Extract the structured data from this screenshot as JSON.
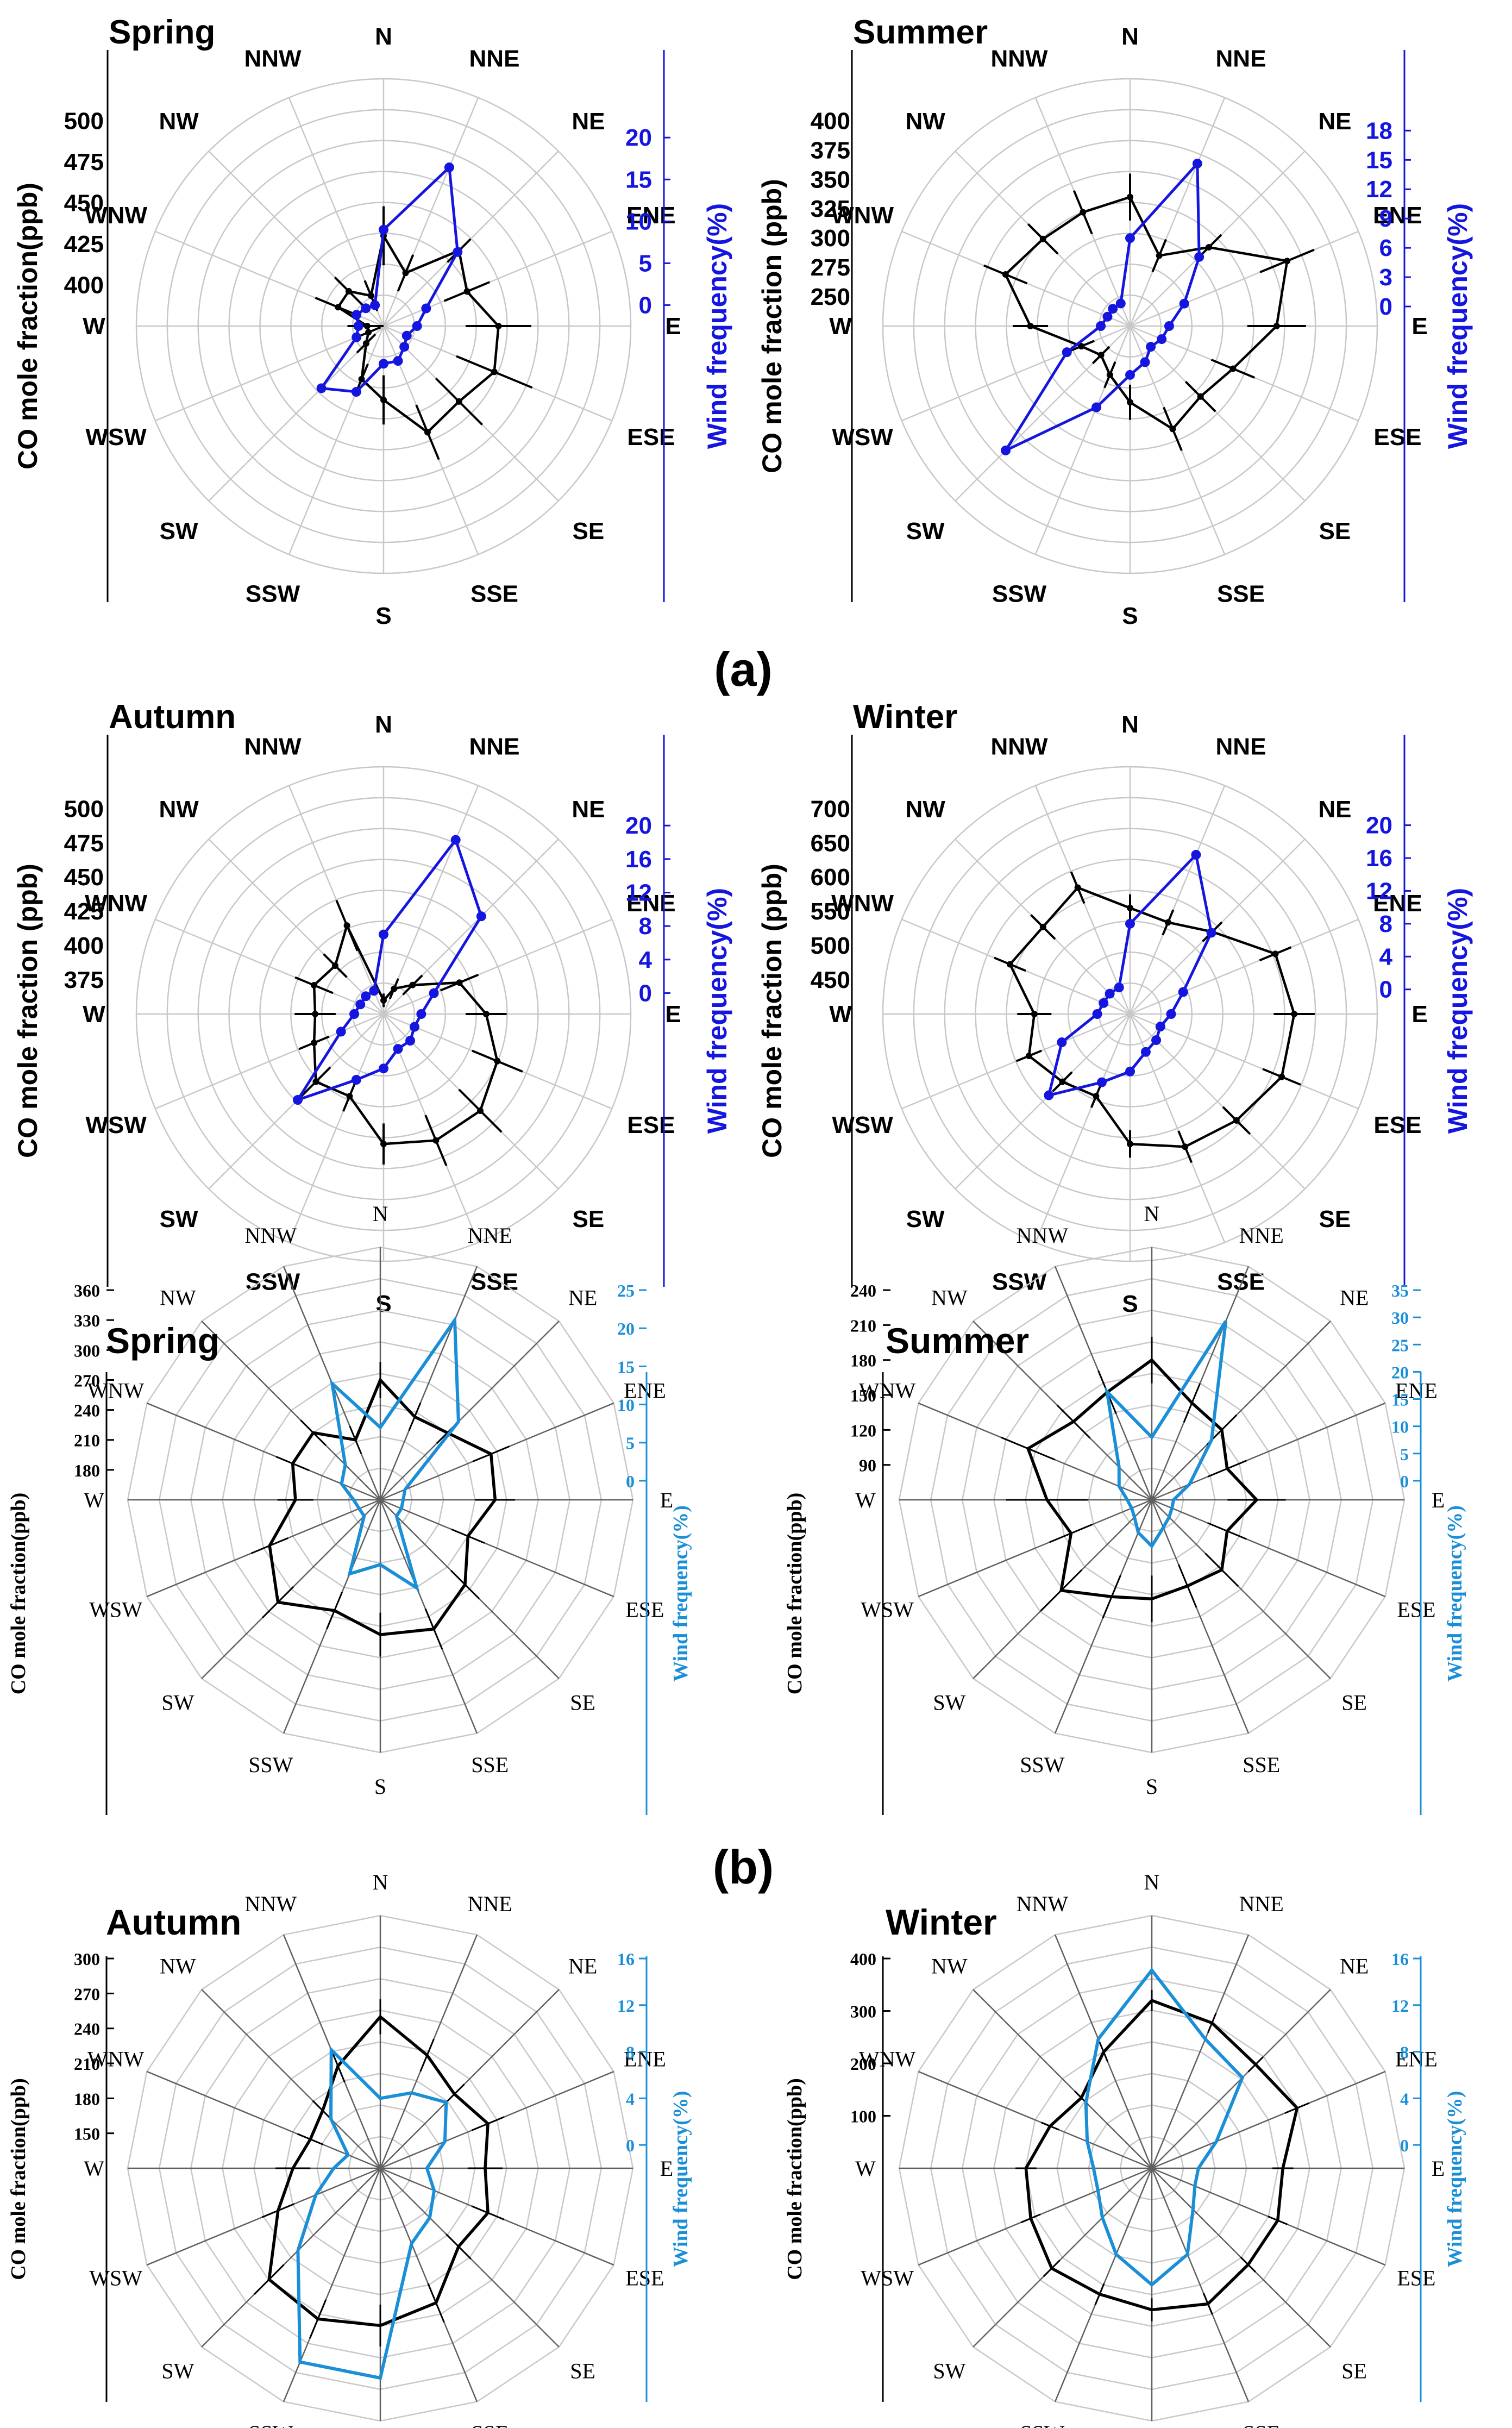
{
  "figure": {
    "group_a_label": "(a)",
    "group_b_label": "(b)",
    "colors": {
      "co": "#000000",
      "wind_a": "#1515e0",
      "wind_b": "#1a8fd8",
      "grid": "#c8c8c8",
      "spoke_b": "#606060"
    }
  },
  "directions": [
    "N",
    "NNE",
    "NE",
    "ENE",
    "E",
    "ESE",
    "SE",
    "SSE",
    "S",
    "SSW",
    "SW",
    "WSW",
    "W",
    "WNW",
    "NW",
    "NNW"
  ],
  "chart_data": [
    {
      "id": "a-spring",
      "group": "a",
      "type": "radar",
      "title": "Spring",
      "left_axis_label": "CO mole fraction(ppb)",
      "right_axis_label": "Wind frequency(%)",
      "co_ticks": [
        400,
        425,
        450,
        475,
        500
      ],
      "co_range": [
        375,
        500
      ],
      "wf_ticks": [
        0,
        5,
        10,
        15,
        20
      ],
      "wf_range": [
        -2.5,
        22
      ],
      "categories": [
        "N",
        "NNE",
        "NE",
        "ENE",
        "E",
        "ESE",
        "SE",
        "SSE",
        "S",
        "SSW",
        "SW",
        "WSW",
        "W",
        "WNW",
        "NW",
        "NNW"
      ],
      "series": [
        {
          "name": "CO mole fraction",
          "values": [
            430,
            410,
            440,
            430,
            445,
            448,
            440,
            445,
            420,
            410,
            390,
            385,
            385,
            405,
            405,
            395
          ],
          "errors": [
            18,
            12,
            10,
            15,
            20,
            25,
            20,
            18,
            15,
            10,
            8,
            8,
            12,
            15,
            12,
            10
          ]
        },
        {
          "name": "Wind frequency",
          "values": [
            9,
            18,
            10,
            3,
            1.5,
            0.5,
            1,
            2,
            2,
            6,
            8,
            1,
            0.5,
            1,
            0.5,
            0.2
          ]
        }
      ]
    },
    {
      "id": "a-summer",
      "group": "a",
      "type": "radar",
      "title": "Summer",
      "left_axis_label": "CO mole fraction (ppb)",
      "right_axis_label": "Wind frequency(%)",
      "co_ticks": [
        250,
        275,
        300,
        325,
        350,
        375,
        400
      ],
      "co_range": [
        225,
        400
      ],
      "wf_ticks": [
        0,
        3,
        6,
        9,
        12,
        15,
        18
      ],
      "wf_range": [
        -2,
        19
      ],
      "categories": [
        "N",
        "NNE",
        "NE",
        "ENE",
        "E",
        "ESE",
        "SE",
        "SSE",
        "S",
        "SSW",
        "SW",
        "WSW",
        "W",
        "WNW",
        "NW",
        "NNW"
      ],
      "series": [
        {
          "name": "CO mole fraction",
          "values": [
            335,
            290,
            320,
            370,
            350,
            320,
            310,
            320,
            290,
            270,
            260,
            270,
            310,
            340,
            330,
            330
          ],
          "errors": [
            20,
            15,
            15,
            25,
            25,
            20,
            18,
            20,
            15,
            12,
            10,
            12,
            15,
            20,
            18,
            20
          ]
        },
        {
          "name": "Wind frequency",
          "values": [
            7,
            16,
            8,
            4,
            2,
            1.5,
            1,
            2,
            3,
            7,
            16,
            5,
            1,
            0.5,
            0.5,
            0.5
          ]
        }
      ]
    },
    {
      "id": "a-autumn",
      "group": "a",
      "type": "radar",
      "title": "Autumn",
      "left_axis_label": "CO mole fraction (ppb)",
      "right_axis_label": "Wind frequency(%)",
      "co_ticks": [
        375,
        400,
        425,
        450,
        475,
        500
      ],
      "co_range": [
        350,
        500
      ],
      "wf_ticks": [
        0,
        4,
        8,
        12,
        16,
        20
      ],
      "wf_range": [
        -2.5,
        22
      ],
      "categories": [
        "N",
        "NNE",
        "NE",
        "ENE",
        "E",
        "ESE",
        "SE",
        "SSE",
        "S",
        "SSW",
        "SW",
        "WSW",
        "W",
        "WNW",
        "NW",
        "NNW"
      ],
      "series": [
        {
          "name": "CO mole fraction",
          "values": [
            360,
            370,
            380,
            410,
            425,
            440,
            450,
            450,
            445,
            415,
            420,
            405,
            400,
            405,
            400,
            420
          ],
          "errors": [
            5,
            8,
            10,
            15,
            15,
            20,
            22,
            20,
            15,
            12,
            15,
            12,
            15,
            15,
            12,
            20
          ]
        },
        {
          "name": "Wind frequency",
          "values": [
            7,
            20,
            14,
            4,
            2,
            1.5,
            2,
            2,
            4,
            6,
            12,
            3,
            1,
            0.5,
            0.5,
            0.5
          ]
        }
      ]
    },
    {
      "id": "a-winter",
      "group": "a",
      "type": "radar",
      "title": "Winter",
      "left_axis_label": "CO mole fraction (ppb)",
      "right_axis_label": "Wind frequency(%)",
      "co_ticks": [
        450,
        500,
        550,
        600,
        650,
        700
      ],
      "co_range": [
        400,
        700
      ],
      "wf_ticks": [
        0,
        4,
        8,
        12,
        16,
        20
      ],
      "wf_range": [
        -3,
        22
      ],
      "categories": [
        "N",
        "NNE",
        "NE",
        "ENE",
        "E",
        "ESE",
        "SE",
        "SSE",
        "S",
        "SSW",
        "SW",
        "WSW",
        "W",
        "WNW",
        "NW",
        "NNW"
      ],
      "series": [
        {
          "name": "CO mole fraction",
          "values": [
            555,
            545,
            570,
            630,
            640,
            640,
            620,
            610,
            590,
            530,
            540,
            560,
            540,
            590,
            580,
            600
          ],
          "errors": [
            20,
            20,
            20,
            25,
            30,
            30,
            28,
            25,
            20,
            18,
            20,
            20,
            25,
            25,
            25,
            25
          ]
        },
        {
          "name": "Wind frequency",
          "values": [
            8,
            18,
            11,
            4,
            2,
            1,
            1.5,
            2,
            4,
            6,
            11,
            6,
            1,
            0.5,
            0.5,
            0.5
          ]
        }
      ]
    },
    {
      "id": "b-spring",
      "group": "b",
      "type": "radar",
      "title": "Spring",
      "left_axis_label": "CO mole fraction(ppb)",
      "right_axis_label": "Wind frequency(%)",
      "co_ticks": [
        180,
        210,
        240,
        270,
        300,
        330,
        360
      ],
      "co_range": [
        150,
        360
      ],
      "wf_ticks": [
        0,
        5,
        10,
        15,
        20,
        25
      ],
      "wf_range": [
        -2.5,
        25
      ],
      "categories": [
        "N",
        "NNE",
        "NE",
        "ENE",
        "E",
        "ESE",
        "SE",
        "SSE",
        "S",
        "SSW",
        "SW",
        "WSW",
        "W",
        "WNW",
        "NW",
        "NNW"
      ],
      "series": [
        {
          "name": "CO mole fraction",
          "values": [
            270,
            240,
            245,
            270,
            265,
            245,
            270,
            290,
            285,
            270,
            295,
            270,
            235,
            245,
            245,
            215
          ],
          "errors": [
            18,
            15,
            15,
            20,
            20,
            18,
            20,
            22,
            22,
            20,
            22,
            20,
            18,
            18,
            18,
            15
          ]
        },
        {
          "name": "Wind frequency",
          "values": [
            7,
            23,
            12,
            1,
            0.5,
            0.5,
            0.5,
            10,
            6,
            8,
            0.5,
            0.5,
            1,
            3,
            4,
            14
          ]
        }
      ]
    },
    {
      "id": "b-summer",
      "group": "b",
      "type": "radar",
      "title": "Summer",
      "left_axis_label": "CO mole fraction(ppb)",
      "right_axis_label": "Wind frequency(%)",
      "co_ticks": [
        90,
        120,
        150,
        180,
        210,
        240
      ],
      "co_range": [
        60,
        240
      ],
      "wf_ticks": [
        0,
        5,
        10,
        15,
        20,
        25,
        30,
        35
      ],
      "wf_range": [
        -3.5,
        35
      ],
      "categories": [
        "N",
        "NNE",
        "NE",
        "ENE",
        "E",
        "ESE",
        "SE",
        "SSE",
        "S",
        "SSW",
        "SW",
        "WSW",
        "W",
        "WNW",
        "NW",
        "NNW"
      ],
      "series": [
        {
          "name": "CO mole fraction",
          "values": [
            180,
            150,
            145,
            130,
            150,
            130,
            145,
            140,
            145,
            150,
            170,
            135,
            150,
            175,
            155,
            160
          ],
          "errors": [
            20,
            18,
            18,
            18,
            25,
            18,
            20,
            20,
            20,
            20,
            25,
            20,
            35,
            25,
            20,
            20
          ]
        },
        {
          "name": "Wind frequency",
          "values": [
            8,
            32,
            12,
            4,
            0.5,
            0.5,
            1,
            2,
            5,
            3,
            1,
            0.5,
            1,
            3,
            5,
            18
          ]
        }
      ]
    },
    {
      "id": "b-autumn",
      "group": "b",
      "type": "radar",
      "title": "Autumn",
      "left_axis_label": "CO mole fraction(ppb)",
      "right_axis_label": "Wind frequency(%)",
      "co_ticks": [
        150,
        180,
        210,
        240,
        270,
        300
      ],
      "co_range": [
        120,
        300
      ],
      "wf_ticks": [
        0,
        4,
        8,
        12,
        16
      ],
      "wf_range": [
        -2,
        16
      ],
      "categories": [
        "N",
        "NNE",
        "NE",
        "ENE",
        "E",
        "ESE",
        "SE",
        "SSE",
        "S",
        "SSW",
        "SW",
        "WSW",
        "W",
        "WNW",
        "NW",
        "NNW"
      ],
      "series": [
        {
          "name": "CO mole fraction",
          "values": [
            250,
            225,
            210,
            220,
            210,
            220,
            215,
            245,
            255,
            260,
            255,
            215,
            195,
            185,
            190,
            215
          ],
          "errors": [
            15,
            15,
            12,
            15,
            15,
            15,
            15,
            18,
            18,
            18,
            18,
            15,
            15,
            12,
            12,
            15
          ]
        },
        {
          "name": "Wind frequency",
          "values": [
            4,
            5,
            6,
            4,
            2,
            3,
            4,
            5,
            16,
            16,
            8,
            4,
            2,
            1,
            4,
            9
          ]
        }
      ]
    },
    {
      "id": "b-winter",
      "group": "b",
      "type": "radar",
      "title": "Winter",
      "left_axis_label": "CO mole fraction(ppb)",
      "right_axis_label": "Wind frequency(%)",
      "co_ticks": [
        100,
        200,
        300,
        400
      ],
      "co_range": [
        0,
        400
      ],
      "wf_ticks": [
        0,
        4,
        8,
        12,
        16
      ],
      "wf_range": [
        -2,
        16
      ],
      "categories": [
        "N",
        "NNE",
        "NE",
        "ENE",
        "E",
        "ESE",
        "SE",
        "SSE",
        "S",
        "SSW",
        "SW",
        "WSW",
        "W",
        "WNW",
        "NW",
        "NNW"
      ],
      "series": [
        {
          "name": "CO mole fraction",
          "values": [
            320,
            300,
            280,
            300,
            250,
            260,
            260,
            280,
            270,
            260,
            270,
            250,
            240,
            210,
            190,
            240
          ],
          "errors": [
            20,
            20,
            20,
            25,
            20,
            20,
            20,
            22,
            22,
            22,
            22,
            20,
            20,
            18,
            18,
            20
          ]
        },
        {
          "name": "Wind frequency",
          "values": [
            15,
            10,
            9,
            4,
            2,
            2,
            3,
            6,
            8,
            6,
            4,
            3,
            3,
            4,
            6,
            10
          ]
        }
      ]
    }
  ]
}
